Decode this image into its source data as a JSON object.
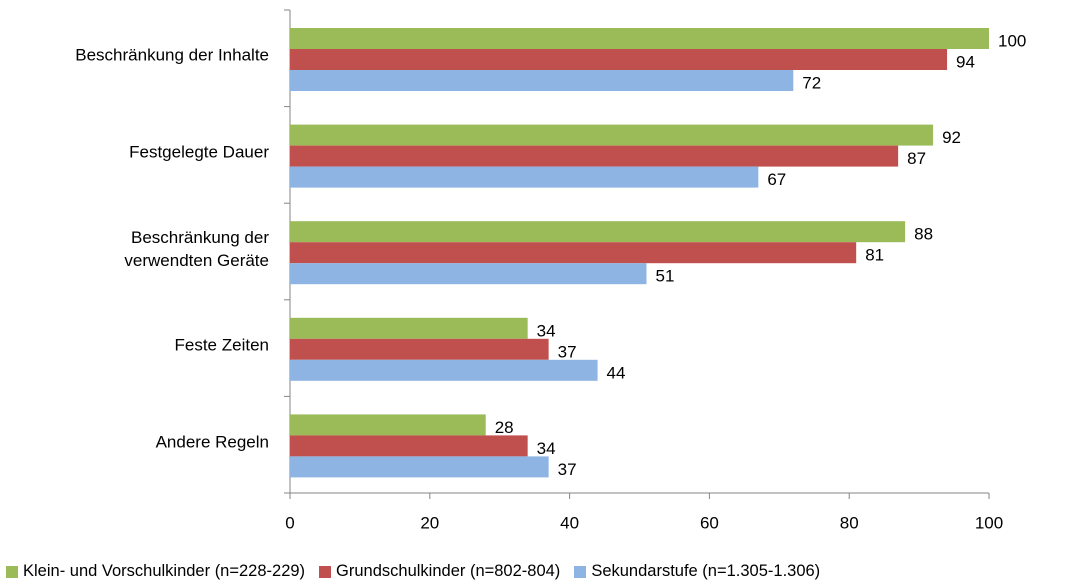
{
  "chart_data": {
    "type": "bar",
    "orientation": "horizontal",
    "categories": [
      "Beschränkung der Inhalte",
      "Festgelegte Dauer",
      "Beschränkung der\nverwendten Geräte",
      "Feste Zeiten",
      "Andere Regeln"
    ],
    "series": [
      {
        "name": "Klein- und Vorschulkinder (n=228-229)",
        "color": "#9bbb59",
        "values": [
          100,
          92,
          88,
          34,
          28
        ]
      },
      {
        "name": "Grundschulkinder (n=802-804)",
        "color": "#c0504d",
        "values": [
          94,
          87,
          81,
          37,
          34
        ]
      },
      {
        "name": "Sekundarstufe (n=1.305-1.306)",
        "color": "#8db4e2",
        "values": [
          72,
          67,
          51,
          44,
          37
        ]
      }
    ],
    "xlim": [
      0,
      100
    ],
    "xticks": [
      0,
      20,
      40,
      60,
      80,
      100
    ],
    "legend": "bottom",
    "grid": false
  }
}
